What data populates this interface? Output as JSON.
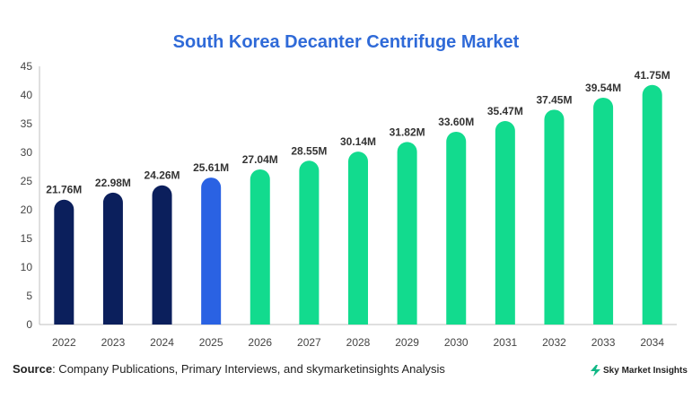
{
  "title": "South Korea Decanter Centrifuge Market",
  "source": {
    "label": "Source",
    "text": ": Company Publications, Primary Interviews, and skymarketinsights Analysis"
  },
  "brand": {
    "name": "Sky Market Insights",
    "icon": "bolt-logo-icon"
  },
  "colors": {
    "title": "#2f6ad8",
    "historical": "#0b1f5c",
    "current": "#2a62e3",
    "forecast": "#12db8e"
  },
  "chart_data": {
    "type": "bar",
    "title": "South Korea Decanter Centrifuge Market",
    "categories": [
      "2022",
      "2023",
      "2024",
      "2025",
      "2026",
      "2027",
      "2028",
      "2029",
      "2030",
      "2031",
      "2032",
      "2033",
      "2034"
    ],
    "values": [
      21.76,
      22.98,
      24.26,
      25.61,
      27.04,
      28.55,
      30.14,
      31.82,
      33.6,
      35.47,
      37.45,
      39.54,
      41.75
    ],
    "labels": [
      "21.76M",
      "22.98M",
      "24.26M",
      "25.61M",
      "27.04M",
      "28.55M",
      "30.14M",
      "31.82M",
      "33.60M",
      "35.47M",
      "37.45M",
      "39.54M",
      "41.75M"
    ],
    "bar_colors": [
      "#0b1f5c",
      "#0b1f5c",
      "#0b1f5c",
      "#2a62e3",
      "#12db8e",
      "#12db8e",
      "#12db8e",
      "#12db8e",
      "#12db8e",
      "#12db8e",
      "#12db8e",
      "#12db8e",
      "#12db8e"
    ],
    "yticks": [
      0,
      5,
      10,
      15,
      20,
      25,
      30,
      35,
      40,
      45
    ],
    "ylim": [
      0,
      45
    ],
    "xlabel": "",
    "ylabel": "",
    "grid": false,
    "legend": "none"
  }
}
